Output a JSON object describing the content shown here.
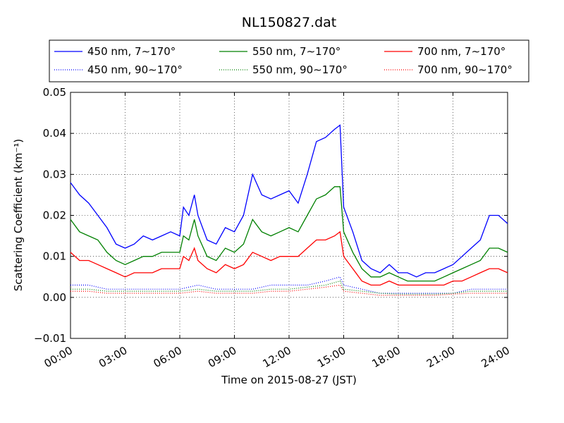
{
  "chart_data": {
    "type": "line",
    "title": "NL150827.dat",
    "xlabel": "Time on 2015-08-27 (JST)",
    "ylabel": "Scattering Coefficient (km⁻¹)",
    "x_unit": "hours",
    "xlim": [
      0,
      24
    ],
    "ylim": [
      -0.01,
      0.05
    ],
    "x_ticks": [
      "00:00",
      "03:00",
      "06:00",
      "09:00",
      "12:00",
      "15:00",
      "18:00",
      "21:00",
      "24:00"
    ],
    "y_ticks": [
      "−0.01",
      "0.00",
      "0.01",
      "0.02",
      "0.03",
      "0.04",
      "0.05"
    ],
    "grid": true,
    "legend_position": "top",
    "series": [
      {
        "name": "450 nm, 7∼170°",
        "color": "#0000ff",
        "style": "solid",
        "x": [
          0,
          0.5,
          1,
          1.5,
          2,
          2.5,
          3,
          3.5,
          4,
          4.5,
          5,
          5.5,
          6,
          6.2,
          6.5,
          6.8,
          7,
          7.5,
          8,
          8.5,
          9,
          9.5,
          10,
          10.5,
          11,
          11.5,
          12,
          12.5,
          13,
          13.5,
          14,
          14.5,
          14.8,
          15,
          15.5,
          16,
          16.5,
          17,
          17.5,
          18,
          18.5,
          19,
          19.5,
          20,
          20.5,
          21,
          21.5,
          22,
          22.5,
          23,
          23.5,
          24
        ],
        "y": [
          0.028,
          0.025,
          0.023,
          0.02,
          0.017,
          0.013,
          0.012,
          0.013,
          0.015,
          0.014,
          0.015,
          0.016,
          0.015,
          0.022,
          0.02,
          0.025,
          0.02,
          0.014,
          0.013,
          0.017,
          0.016,
          0.02,
          0.03,
          0.025,
          0.024,
          0.025,
          0.026,
          0.023,
          0.03,
          0.038,
          0.039,
          0.041,
          0.042,
          0.022,
          0.016,
          0.009,
          0.007,
          0.006,
          0.008,
          0.006,
          0.006,
          0.005,
          0.006,
          0.006,
          0.007,
          0.008,
          0.01,
          0.012,
          0.014,
          0.02,
          0.02,
          0.018
        ]
      },
      {
        "name": "550 nm, 7∼170°",
        "color": "#008000",
        "style": "solid",
        "x": [
          0,
          0.5,
          1,
          1.5,
          2,
          2.5,
          3,
          3.5,
          4,
          4.5,
          5,
          5.5,
          6,
          6.2,
          6.5,
          6.8,
          7,
          7.5,
          8,
          8.5,
          9,
          9.5,
          10,
          10.5,
          11,
          11.5,
          12,
          12.5,
          13,
          13.5,
          14,
          14.5,
          14.8,
          15,
          15.5,
          16,
          16.5,
          17,
          17.5,
          18,
          18.5,
          19,
          19.5,
          20,
          20.5,
          21,
          21.5,
          22,
          22.5,
          23,
          23.5,
          24
        ],
        "y": [
          0.019,
          0.016,
          0.015,
          0.014,
          0.011,
          0.009,
          0.008,
          0.009,
          0.01,
          0.01,
          0.011,
          0.011,
          0.011,
          0.015,
          0.014,
          0.019,
          0.015,
          0.01,
          0.009,
          0.012,
          0.011,
          0.013,
          0.019,
          0.016,
          0.015,
          0.016,
          0.017,
          0.016,
          0.02,
          0.024,
          0.025,
          0.027,
          0.027,
          0.016,
          0.011,
          0.007,
          0.005,
          0.005,
          0.006,
          0.005,
          0.004,
          0.004,
          0.004,
          0.004,
          0.005,
          0.006,
          0.007,
          0.008,
          0.009,
          0.012,
          0.012,
          0.011
        ]
      },
      {
        "name": "700 nm, 7∼170°",
        "color": "#ff0000",
        "style": "solid",
        "x": [
          0,
          0.5,
          1,
          1.5,
          2,
          2.5,
          3,
          3.5,
          4,
          4.5,
          5,
          5.5,
          6,
          6.2,
          6.5,
          6.8,
          7,
          7.5,
          8,
          8.5,
          9,
          9.5,
          10,
          10.5,
          11,
          11.5,
          12,
          12.5,
          13,
          13.5,
          14,
          14.5,
          14.8,
          15,
          15.5,
          16,
          16.5,
          17,
          17.5,
          18,
          18.5,
          19,
          19.5,
          20,
          20.5,
          21,
          21.5,
          22,
          22.5,
          23,
          23.5,
          24
        ],
        "y": [
          0.011,
          0.009,
          0.009,
          0.008,
          0.007,
          0.006,
          0.005,
          0.006,
          0.006,
          0.006,
          0.007,
          0.007,
          0.007,
          0.01,
          0.009,
          0.012,
          0.009,
          0.007,
          0.006,
          0.008,
          0.007,
          0.008,
          0.011,
          0.01,
          0.009,
          0.01,
          0.01,
          0.01,
          0.012,
          0.014,
          0.014,
          0.015,
          0.016,
          0.01,
          0.007,
          0.004,
          0.003,
          0.003,
          0.004,
          0.003,
          0.003,
          0.003,
          0.003,
          0.003,
          0.003,
          0.004,
          0.004,
          0.005,
          0.006,
          0.007,
          0.007,
          0.006
        ]
      },
      {
        "name": "450 nm, 90∼170°",
        "color": "#0000ff",
        "style": "dotted",
        "x": [
          0,
          1,
          2,
          3,
          4,
          5,
          6,
          7,
          8,
          9,
          10,
          11,
          12,
          13,
          14,
          14.8,
          15,
          16,
          17,
          18,
          19,
          20,
          21,
          22,
          23,
          24
        ],
        "y": [
          0.003,
          0.003,
          0.002,
          0.002,
          0.002,
          0.002,
          0.002,
          0.003,
          0.002,
          0.002,
          0.002,
          0.003,
          0.003,
          0.003,
          0.004,
          0.005,
          0.003,
          0.002,
          0.001,
          0.001,
          0.001,
          0.001,
          0.001,
          0.002,
          0.002,
          0.002
        ]
      },
      {
        "name": "550 nm, 90∼170°",
        "color": "#008000",
        "style": "dotted",
        "x": [
          0,
          1,
          2,
          3,
          4,
          5,
          6,
          7,
          8,
          9,
          10,
          11,
          12,
          13,
          14,
          14.8,
          15,
          16,
          17,
          18,
          19,
          20,
          21,
          22,
          23,
          24
        ],
        "y": [
          0.002,
          0.002,
          0.0015,
          0.0015,
          0.0015,
          0.0015,
          0.0015,
          0.002,
          0.0015,
          0.0015,
          0.0015,
          0.002,
          0.002,
          0.0025,
          0.003,
          0.004,
          0.002,
          0.0015,
          0.001,
          0.0008,
          0.0008,
          0.0008,
          0.001,
          0.0015,
          0.0015,
          0.0015
        ]
      },
      {
        "name": "700 nm, 90∼170°",
        "color": "#ff0000",
        "style": "dotted",
        "x": [
          0,
          1,
          2,
          3,
          4,
          5,
          6,
          7,
          8,
          9,
          10,
          11,
          12,
          13,
          14,
          14.8,
          15,
          16,
          17,
          18,
          19,
          20,
          21,
          22,
          23,
          24
        ],
        "y": [
          0.0015,
          0.0015,
          0.001,
          0.001,
          0.001,
          0.001,
          0.001,
          0.0015,
          0.001,
          0.001,
          0.001,
          0.0015,
          0.0015,
          0.002,
          0.0025,
          0.003,
          0.0015,
          0.001,
          0.0005,
          0.0005,
          0.0005,
          0.0005,
          0.0008,
          0.001,
          0.001,
          0.001
        ]
      }
    ]
  }
}
